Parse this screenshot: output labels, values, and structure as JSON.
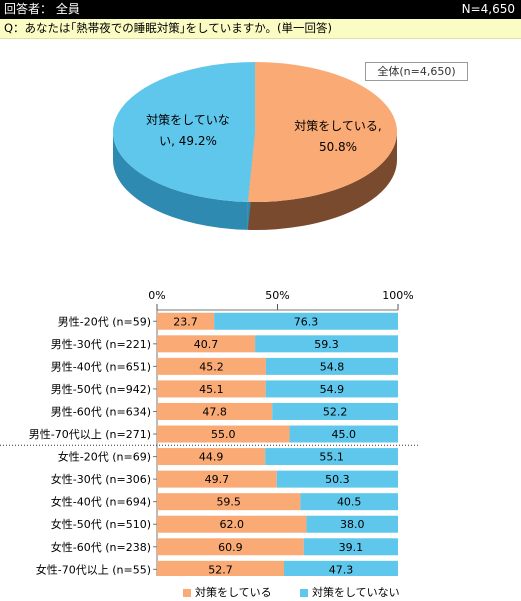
{
  "header": {
    "respondents_label": "回答者： 全員",
    "n_label": "N=4,650"
  },
  "question": "Q：あなたは｢熱帯夜での睡眠対策｣をしていますか。(単一回答)",
  "colors": {
    "yes": "#f9aa75",
    "yes_dark": "#7a4a2e",
    "no": "#5fc7ec",
    "no_dark": "#2e8ab0"
  },
  "pie": {
    "box_label": "全体(n=4,650)",
    "slices": [
      {
        "label_line1": "対策をしている,",
        "label_line2": "50.8%",
        "value": 50.8
      },
      {
        "label_line1": "対策をしていな",
        "label_line2": "い, 49.2%",
        "value": 49.2
      }
    ]
  },
  "chart_data": {
    "type": "bar",
    "orientation": "horizontal-stacked-100",
    "x_ticks": [
      "0%",
      "50%",
      "100%"
    ],
    "xlim": [
      0,
      100
    ],
    "categories": [
      "男性-20代 (n=59)",
      "男性-30代 (n=221)",
      "男性-40代 (n=651)",
      "男性-50代 (n=942)",
      "男性-60代 (n=634)",
      "男性-70代以上 (n=271)",
      "女性-20代 (n=69)",
      "女性-30代 (n=306)",
      "女性-40代 (n=694)",
      "女性-50代 (n=510)",
      "女性-60代 (n=238)",
      "女性-70代以上 (n=55)"
    ],
    "series": [
      {
        "name": "対策をしている",
        "values": [
          23.7,
          40.7,
          45.2,
          45.1,
          47.8,
          55.0,
          44.9,
          49.7,
          59.5,
          62.0,
          60.9,
          52.7
        ],
        "labels": [
          "23.7",
          "40.7",
          "45.2",
          "45.1",
          "47.8",
          "55.0",
          "44.9",
          "49.7",
          "59.5",
          "62.0",
          "60.9",
          "52.7"
        ]
      },
      {
        "name": "対策をしていない",
        "values": [
          76.3,
          59.3,
          54.8,
          54.9,
          52.2,
          45.0,
          55.1,
          50.3,
          40.5,
          38.0,
          39.1,
          47.3
        ],
        "labels": [
          "76.3",
          "59.3",
          "54.8",
          "54.9",
          "52.2",
          "45.0",
          "55.1",
          "50.3",
          "40.5",
          "38.0",
          "39.1",
          "47.3"
        ]
      }
    ],
    "legend": "bottom"
  }
}
